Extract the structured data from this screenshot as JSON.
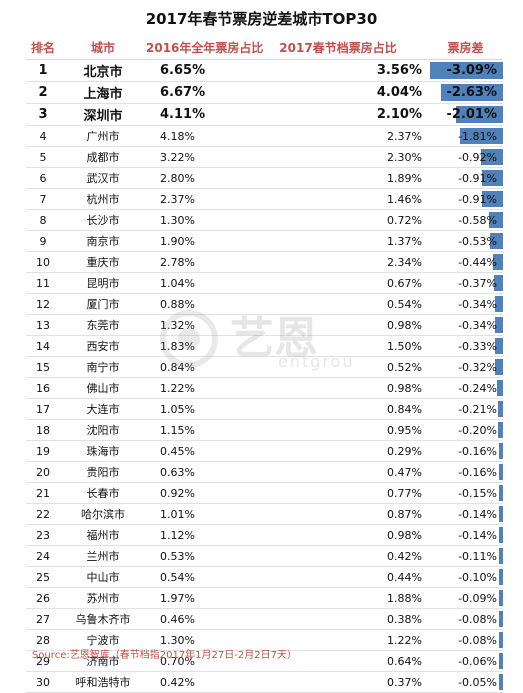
{
  "title": "2017年春节票房逆差城市TOP30",
  "headers": {
    "rank": "排名",
    "city": "城市",
    "share_2016": "2016年全年票房占比",
    "share_2017": "2017春节档票房占比",
    "diff": "票房差"
  },
  "rows": [
    {
      "rank": "1",
      "city": "北京市",
      "share_2016": "6.65%",
      "share_2017": "3.56%",
      "diff": "-3.09%",
      "diff_value": -3.09
    },
    {
      "rank": "2",
      "city": "上海市",
      "share_2016": "6.67%",
      "share_2017": "4.04%",
      "diff": "-2.63%",
      "diff_value": -2.63
    },
    {
      "rank": "3",
      "city": "深圳市",
      "share_2016": "4.11%",
      "share_2017": "2.10%",
      "diff": "-2.01%",
      "diff_value": -2.01
    },
    {
      "rank": "4",
      "city": "广州市",
      "share_2016": "4.18%",
      "share_2017": "2.37%",
      "diff": "-1.81%",
      "diff_value": -1.81
    },
    {
      "rank": "5",
      "city": "成都市",
      "share_2016": "3.22%",
      "share_2017": "2.30%",
      "diff": "-0.92%",
      "diff_value": -0.92
    },
    {
      "rank": "6",
      "city": "武汉市",
      "share_2016": "2.80%",
      "share_2017": "1.89%",
      "diff": "-0.91%",
      "diff_value": -0.91
    },
    {
      "rank": "7",
      "city": "杭州市",
      "share_2016": "2.37%",
      "share_2017": "1.46%",
      "diff": "-0.91%",
      "diff_value": -0.91
    },
    {
      "rank": "8",
      "city": "长沙市",
      "share_2016": "1.30%",
      "share_2017": "0.72%",
      "diff": "-0.58%",
      "diff_value": -0.58
    },
    {
      "rank": "9",
      "city": "南京市",
      "share_2016": "1.90%",
      "share_2017": "1.37%",
      "diff": "-0.53%",
      "diff_value": -0.53
    },
    {
      "rank": "10",
      "city": "重庆市",
      "share_2016": "2.78%",
      "share_2017": "2.34%",
      "diff": "-0.44%",
      "diff_value": -0.44
    },
    {
      "rank": "11",
      "city": "昆明市",
      "share_2016": "1.04%",
      "share_2017": "0.67%",
      "diff": "-0.37%",
      "diff_value": -0.37
    },
    {
      "rank": "12",
      "city": "厦门市",
      "share_2016": "0.88%",
      "share_2017": "0.54%",
      "diff": "-0.34%",
      "diff_value": -0.34
    },
    {
      "rank": "13",
      "city": "东莞市",
      "share_2016": "1.32%",
      "share_2017": "0.98%",
      "diff": "-0.34%",
      "diff_value": -0.34
    },
    {
      "rank": "14",
      "city": "西安市",
      "share_2016": "1.83%",
      "share_2017": "1.50%",
      "diff": "-0.33%",
      "diff_value": -0.33
    },
    {
      "rank": "15",
      "city": "南宁市",
      "share_2016": "0.84%",
      "share_2017": "0.52%",
      "diff": "-0.32%",
      "diff_value": -0.32
    },
    {
      "rank": "16",
      "city": "佛山市",
      "share_2016": "1.22%",
      "share_2017": "0.98%",
      "diff": "-0.24%",
      "diff_value": -0.24
    },
    {
      "rank": "17",
      "city": "大连市",
      "share_2016": "1.05%",
      "share_2017": "0.84%",
      "diff": "-0.21%",
      "diff_value": -0.21
    },
    {
      "rank": "18",
      "city": "沈阳市",
      "share_2016": "1.15%",
      "share_2017": "0.95%",
      "diff": "-0.20%",
      "diff_value": -0.2
    },
    {
      "rank": "19",
      "city": "珠海市",
      "share_2016": "0.45%",
      "share_2017": "0.29%",
      "diff": "-0.16%",
      "diff_value": -0.16
    },
    {
      "rank": "20",
      "city": "贵阳市",
      "share_2016": "0.63%",
      "share_2017": "0.47%",
      "diff": "-0.16%",
      "diff_value": -0.16
    },
    {
      "rank": "21",
      "city": "长春市",
      "share_2016": "0.92%",
      "share_2017": "0.77%",
      "diff": "-0.15%",
      "diff_value": -0.15
    },
    {
      "rank": "22",
      "city": "哈尔滨市",
      "share_2016": "1.01%",
      "share_2017": "0.87%",
      "diff": "-0.14%",
      "diff_value": -0.14
    },
    {
      "rank": "23",
      "city": "福州市",
      "share_2016": "1.12%",
      "share_2017": "0.98%",
      "diff": "-0.14%",
      "diff_value": -0.14
    },
    {
      "rank": "24",
      "city": "兰州市",
      "share_2016": "0.53%",
      "share_2017": "0.42%",
      "diff": "-0.11%",
      "diff_value": -0.11
    },
    {
      "rank": "25",
      "city": "中山市",
      "share_2016": "0.54%",
      "share_2017": "0.44%",
      "diff": "-0.10%",
      "diff_value": -0.1
    },
    {
      "rank": "26",
      "city": "苏州市",
      "share_2016": "1.97%",
      "share_2017": "1.88%",
      "diff": "-0.09%",
      "diff_value": -0.09
    },
    {
      "rank": "27",
      "city": "乌鲁木齐市",
      "share_2016": "0.46%",
      "share_2017": "0.38%",
      "diff": "-0.08%",
      "diff_value": -0.08
    },
    {
      "rank": "28",
      "city": "宁波市",
      "share_2016": "1.30%",
      "share_2017": "1.22%",
      "diff": "-0.08%",
      "diff_value": -0.08
    },
    {
      "rank": "29",
      "city": "济南市",
      "share_2016": "0.70%",
      "share_2017": "0.64%",
      "diff": "-0.06%",
      "diff_value": -0.06
    },
    {
      "rank": "30",
      "city": "呼和浩特市",
      "share_2016": "0.42%",
      "share_2017": "0.37%",
      "diff": "-0.05%",
      "diff_value": -0.05
    }
  ],
  "watermark": {
    "brand_cn": "艺恩",
    "brand_en": "entgrou"
  },
  "source": "Source:艺恩智库（春节档指2017年1月27日-2月2日7天）",
  "colors": {
    "header_text": "#c0504d",
    "bar": "#4f81bd",
    "source_text": "#c0504d"
  }
}
